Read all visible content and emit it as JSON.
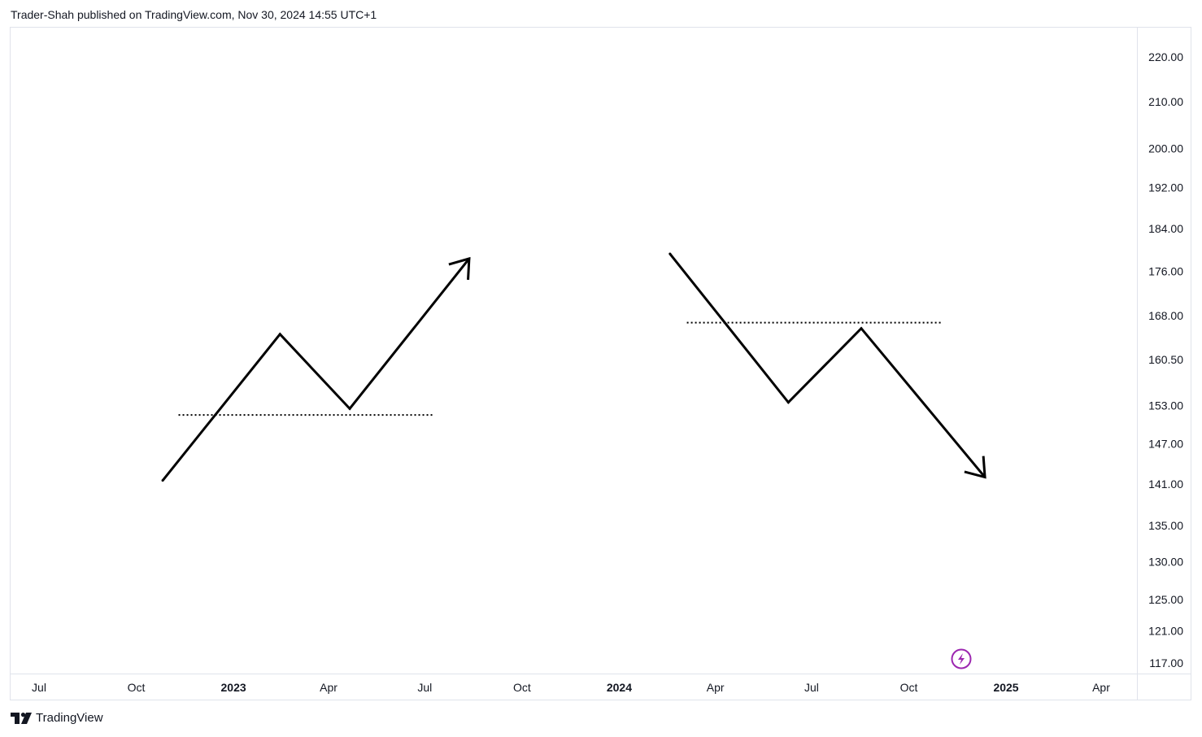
{
  "header": {
    "publish_text": "Trader-Shah published on TradingView.com, Nov 30, 2024 14:55 UTC+1"
  },
  "footer": {
    "brand": "TradingView"
  },
  "colors": {
    "drawing": "#000000",
    "grid_border": "#e0e3eb",
    "text": "#131722",
    "lightning_icon": "#9c27b0"
  },
  "icons": {
    "lightning": "lightning-bolt-icon",
    "logo": "tradingview-logo-icon"
  },
  "chart_data": {
    "type": "line",
    "title": "",
    "xlabel": "",
    "ylabel": "",
    "scale": "log",
    "grid": false,
    "x_ticks": [
      {
        "label": "Jul",
        "date": "2022-07-01",
        "bold": false
      },
      {
        "label": "Oct",
        "date": "2022-10-01",
        "bold": false
      },
      {
        "label": "2023",
        "date": "2023-01-01",
        "bold": true
      },
      {
        "label": "Apr",
        "date": "2023-04-01",
        "bold": false
      },
      {
        "label": "Jul",
        "date": "2023-07-01",
        "bold": false
      },
      {
        "label": "Oct",
        "date": "2023-10-01",
        "bold": false
      },
      {
        "label": "2024",
        "date": "2024-01-01",
        "bold": true
      },
      {
        "label": "Apr",
        "date": "2024-04-01",
        "bold": false
      },
      {
        "label": "Jul",
        "date": "2024-07-01",
        "bold": false
      },
      {
        "label": "Oct",
        "date": "2024-10-01",
        "bold": false
      },
      {
        "label": "2025",
        "date": "2025-01-01",
        "bold": true
      },
      {
        "label": "Apr",
        "date": "2025-04-01",
        "bold": false
      }
    ],
    "y_ticks": [
      "220.00",
      "210.00",
      "200.00",
      "192.00",
      "184.00",
      "176.00",
      "168.00",
      "160.50",
      "153.00",
      "147.00",
      "141.00",
      "135.00",
      "130.00",
      "125.00",
      "121.00",
      "117.00"
    ],
    "ylim": [
      116,
      225
    ],
    "xlim": [
      "2022-06-07",
      "2025-05-18"
    ],
    "series": [
      {
        "style": "arrow",
        "x": [
          "2022-10-26",
          "2023-02-14",
          "2023-04-21",
          "2023-08-12"
        ],
        "y": [
          141.5,
          164.8,
          152.5,
          178.3
        ]
      },
      {
        "style": "arrow",
        "x": [
          "2024-02-18",
          "2024-06-09",
          "2024-08-17",
          "2024-12-12"
        ],
        "y": [
          179.2,
          153.5,
          165.8,
          142.0
        ]
      }
    ],
    "levels": [
      {
        "y": 151.5,
        "x_start": "2022-11-10",
        "x_end": "2023-07-09",
        "style": "dotted"
      },
      {
        "y": 166.8,
        "x_start": "2024-03-05",
        "x_end": "2024-11-01",
        "style": "dotted"
      }
    ]
  }
}
